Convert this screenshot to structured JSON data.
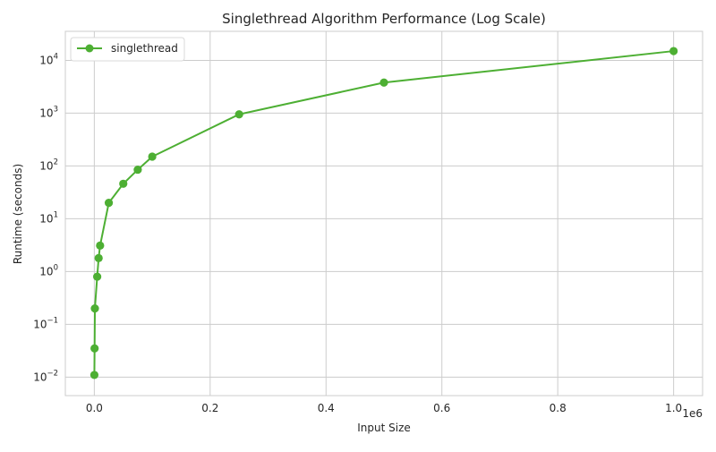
{
  "chart_data": {
    "type": "line",
    "title": "Singlethread Algorithm Performance (Log Scale)",
    "xlabel": "Input Size",
    "ylabel": "Runtime (seconds)",
    "x_offset_label": "1e6",
    "xlim": [
      -50000,
      1050000
    ],
    "ylim_log10": [
      -2.35,
      4.55
    ],
    "yscale": "log",
    "grid": true,
    "legend_position": "upper-left",
    "x_ticks": [
      {
        "value": 0,
        "label": "0.0"
      },
      {
        "value": 200000,
        "label": "0.2"
      },
      {
        "value": 400000,
        "label": "0.4"
      },
      {
        "value": 600000,
        "label": "0.6"
      },
      {
        "value": 800000,
        "label": "0.8"
      },
      {
        "value": 1000000,
        "label": "1.0"
      }
    ],
    "y_ticks": [
      {
        "exp": -2,
        "base": "10",
        "sup": "−2"
      },
      {
        "exp": -1,
        "base": "10",
        "sup": "−1"
      },
      {
        "exp": 0,
        "base": "10",
        "sup": "0"
      },
      {
        "exp": 1,
        "base": "10",
        "sup": "1"
      },
      {
        "exp": 2,
        "base": "10",
        "sup": "2"
      },
      {
        "exp": 3,
        "base": "10",
        "sup": "3"
      },
      {
        "exp": 4,
        "base": "10",
        "sup": "4"
      }
    ],
    "series": [
      {
        "name": "singlethread",
        "color": "#4daf33",
        "x": [
          100,
          500,
          1000,
          5000,
          7500,
          10000,
          25000,
          50000,
          75000,
          100000,
          250000,
          500000,
          1000000
        ],
        "y": [
          0.011,
          0.035,
          0.2,
          0.8,
          1.8,
          3.1,
          20,
          46,
          85,
          150,
          950,
          3800,
          15000
        ]
      }
    ]
  }
}
